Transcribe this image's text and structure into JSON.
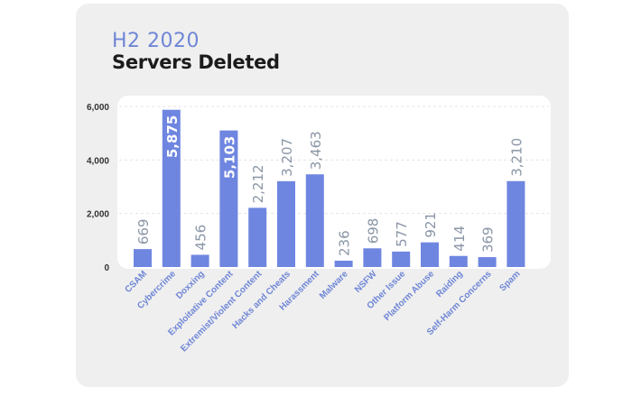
{
  "header": {
    "period": "H2 2020",
    "title": "Servers Deleted"
  },
  "colors": {
    "bar": "#6f86e0",
    "period_text": "#6f86d6",
    "value_label": "#8a96a6",
    "value_label_inside": "#ffffff"
  },
  "chart_data": {
    "type": "bar",
    "title": "Servers Deleted",
    "subtitle": "H2 2020",
    "xlabel": "",
    "ylabel": "",
    "ylim": [
      0,
      6000
    ],
    "yticks": [
      0,
      2000,
      4000,
      6000
    ],
    "ytick_labels": [
      "0",
      "2,000",
      "4,000",
      "6,000"
    ],
    "grid": true,
    "categories": [
      "CSAM",
      "Cybercrime",
      "Doxxing",
      "Exploitative Content",
      "Extremist/Violent Content",
      "Hacks and Cheats",
      "Harassment",
      "Malware",
      "NSFW",
      "Other Issue",
      "Platform Abuse",
      "Raiding",
      "Self-Harm Concerns",
      "Spam"
    ],
    "values": [
      669,
      5875,
      456,
      5103,
      2212,
      3207,
      3463,
      236,
      698,
      577,
      921,
      414,
      369,
      3210
    ],
    "value_labels": [
      "669",
      "5,875",
      "456",
      "5,103",
      "2,212",
      "3,207",
      "3,463",
      "236",
      "698",
      "577",
      "921",
      "414",
      "369",
      "3,210"
    ]
  }
}
